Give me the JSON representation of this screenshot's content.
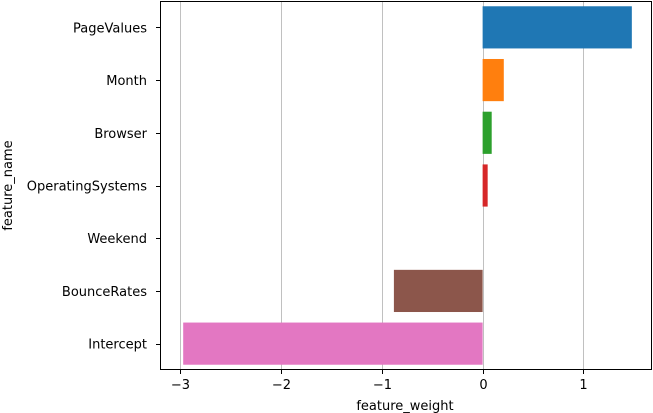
{
  "chart_data": {
    "type": "bar",
    "orientation": "horizontal",
    "categories": [
      "PageValues",
      "Month",
      "Browser",
      "OperatingSystems",
      "Weekend",
      "BounceRates",
      "Intercept"
    ],
    "values": [
      1.48,
      0.21,
      0.09,
      0.05,
      0.0,
      -0.88,
      -2.97
    ],
    "colors": [
      "#1f77b4",
      "#ff7f0e",
      "#2ca02c",
      "#d62728",
      "#9467bd",
      "#8c564b",
      "#e377c2"
    ],
    "xlabel": "feature_weight",
    "ylabel": "feature_name",
    "xlim": [
      -3.2,
      1.68
    ],
    "xticks": [
      -3,
      -2,
      -1,
      0,
      1
    ],
    "xtick_labels": [
      "−3",
      "−2",
      "−1",
      "0",
      "1"
    ],
    "grid": "vertical"
  }
}
